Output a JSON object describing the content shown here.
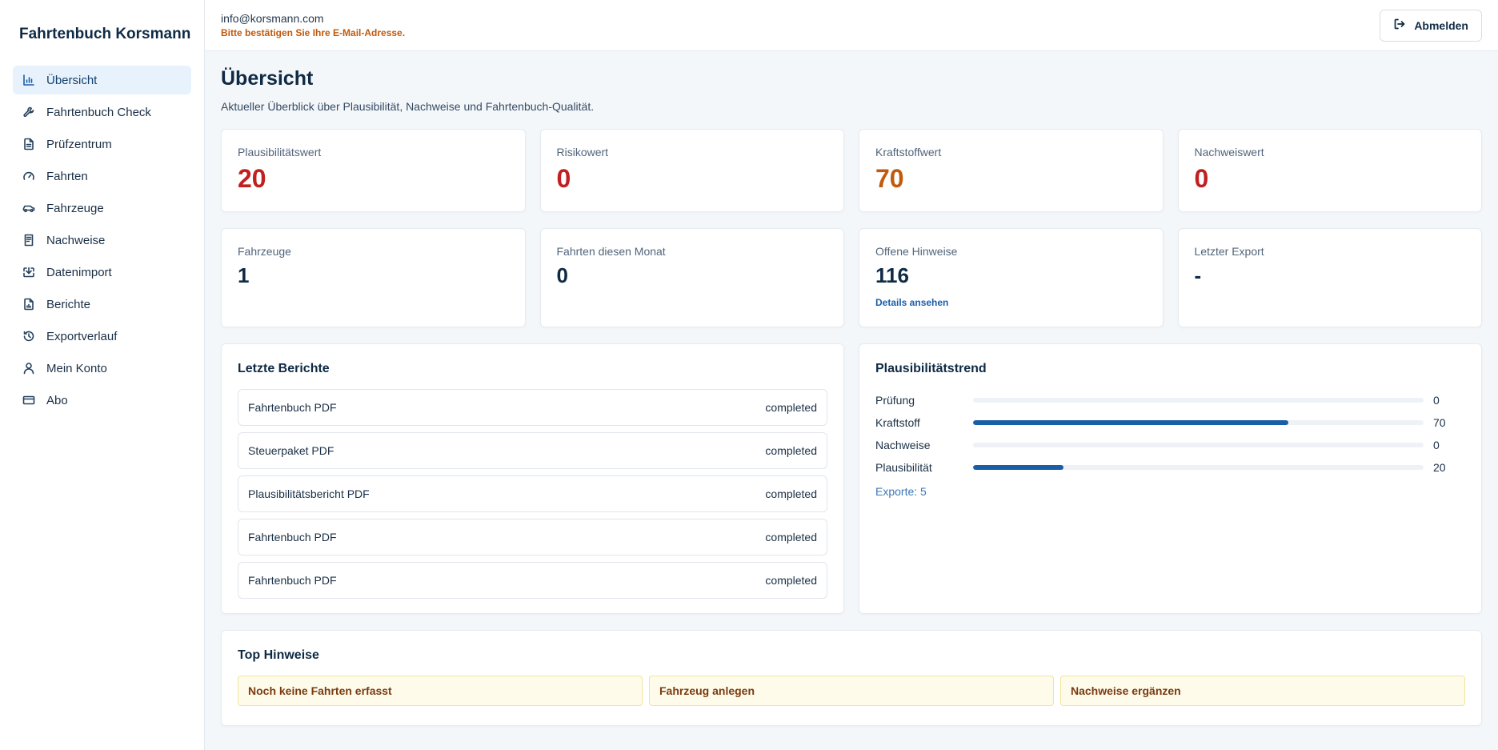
{
  "app": {
    "brand": "Fahrtenbuch Korsmann"
  },
  "sidebar": {
    "items": [
      {
        "label": "Übersicht",
        "icon": "bar-chart-icon",
        "active": true
      },
      {
        "label": "Fahrtenbuch Check",
        "icon": "wrench-icon"
      },
      {
        "label": "Prüfzentrum",
        "icon": "document-icon"
      },
      {
        "label": "Fahrten",
        "icon": "gauge-icon"
      },
      {
        "label": "Fahrzeuge",
        "icon": "car-icon"
      },
      {
        "label": "Nachweise",
        "icon": "receipt-icon"
      },
      {
        "label": "Datenimport",
        "icon": "download-icon"
      },
      {
        "label": "Berichte",
        "icon": "report-icon"
      },
      {
        "label": "Exportverlauf",
        "icon": "history-icon"
      },
      {
        "label": "Mein Konto",
        "icon": "user-icon"
      },
      {
        "label": "Abo",
        "icon": "credit-card-icon"
      }
    ]
  },
  "header": {
    "email": "info@korsmann.com",
    "verify_notice": "Bitte bestätigen Sie Ihre E-Mail-Adresse.",
    "logout_label": "Abmelden"
  },
  "page": {
    "title": "Übersicht",
    "subtitle": "Aktueller Überblick über Plausibilität, Nachweise und Fahrtenbuch-Qualität."
  },
  "scores": [
    {
      "label": "Plausibilitätswert",
      "value": "20"
    },
    {
      "label": "Risikowert",
      "value": "0"
    },
    {
      "label": "Kraftstoffwert",
      "value": "70"
    },
    {
      "label": "Nachweiswert",
      "value": "0"
    }
  ],
  "stats": [
    {
      "label": "Fahrzeuge",
      "value": "1"
    },
    {
      "label": "Fahrten diesen Monat",
      "value": "0"
    },
    {
      "label": "Offene Hinweise",
      "value": "116",
      "link": "Details ansehen"
    },
    {
      "label": "Letzter Export",
      "value": "-"
    }
  ],
  "reports": {
    "title": "Letzte Berichte",
    "items": [
      {
        "name": "Fahrtenbuch PDF",
        "status": "completed"
      },
      {
        "name": "Steuerpaket PDF",
        "status": "completed"
      },
      {
        "name": "Plausibilitätsbericht PDF",
        "status": "completed"
      },
      {
        "name": "Fahrtenbuch PDF",
        "status": "completed"
      },
      {
        "name": "Fahrtenbuch PDF",
        "status": "completed"
      }
    ]
  },
  "trend": {
    "title": "Plausibilitätstrend",
    "rows": [
      {
        "label": "Prüfung",
        "value": 0,
        "display": "0"
      },
      {
        "label": "Kraftstoff",
        "value": 70,
        "display": "70"
      },
      {
        "label": "Nachweise",
        "value": 0,
        "display": "0"
      },
      {
        "label": "Plausibilität",
        "value": 20,
        "display": "20"
      }
    ],
    "max": 100,
    "exports": "Exporte: 5"
  },
  "hints": {
    "title": "Top Hinweise",
    "items": [
      "Noch keine Fahrten erfasst",
      "Fahrzeug anlegen",
      "Nachweise ergänzen"
    ]
  },
  "colors": {
    "accent": "#1b5ea8",
    "danger": "#c0201f",
    "warning": "#c2590c",
    "hint_bg": "#fefbea"
  }
}
